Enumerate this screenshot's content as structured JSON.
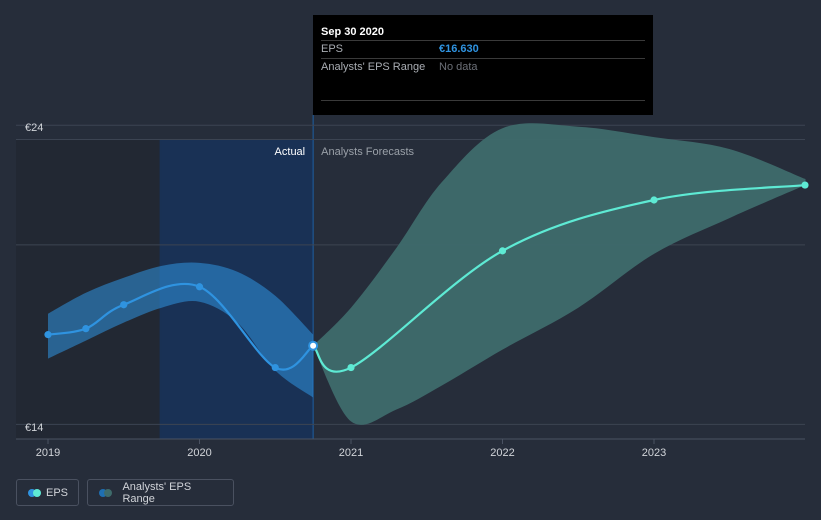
{
  "chart_data": {
    "type": "line",
    "title": "",
    "xlabel": "",
    "ylabel": "",
    "y_axis": {
      "ticks": [
        {
          "value": 24,
          "label": "€24"
        },
        {
          "value": 14,
          "label": "€14"
        }
      ],
      "gridlines": [
        14,
        20,
        24
      ]
    },
    "x_axis": {
      "ticks": [
        {
          "value": 2019,
          "label": "2019"
        },
        {
          "value": 2020,
          "label": "2020"
        },
        {
          "value": 2021,
          "label": "2021"
        },
        {
          "value": 2022,
          "label": "2022"
        },
        {
          "value": 2023,
          "label": "2023"
        }
      ]
    },
    "ylim": [
      13.0,
      25.0
    ],
    "xlim": [
      2018.8,
      2024.0
    ],
    "regions": {
      "actual_label": "Actual",
      "forecast_label": "Analysts Forecasts",
      "divider_x": 2020.75
    },
    "series": [
      {
        "name": "EPS",
        "kind": "actual",
        "color": "#2f93e0",
        "points": [
          {
            "x": 2019.0,
            "y": 17.0
          },
          {
            "x": 2019.25,
            "y": 17.2
          },
          {
            "x": 2019.5,
            "y": 18.0
          },
          {
            "x": 2020.0,
            "y": 18.6
          },
          {
            "x": 2020.5,
            "y": 15.9
          },
          {
            "x": 2020.75,
            "y": 16.63
          }
        ],
        "band": {
          "x": [
            2019.0,
            2019.25,
            2019.5,
            2019.75,
            2020.0,
            2020.25,
            2020.5,
            2020.75
          ],
          "upper": [
            17.7,
            18.4,
            18.9,
            19.3,
            19.4,
            19.1,
            18.3,
            17.0
          ],
          "lower": [
            16.2,
            16.8,
            17.4,
            17.9,
            18.1,
            17.4,
            15.8,
            14.9
          ]
        }
      },
      {
        "name": "EPS forecast",
        "kind": "forecast",
        "color": "#5eead4",
        "points": [
          {
            "x": 2020.75,
            "y": 16.63
          },
          {
            "x": 2021.0,
            "y": 15.9
          },
          {
            "x": 2022.0,
            "y": 19.8
          },
          {
            "x": 2023.0,
            "y": 21.5
          },
          {
            "x": 2024.0,
            "y": 22.0
          }
        ]
      },
      {
        "name": "Analysts' EPS Range",
        "kind": "range",
        "color": "#3e6b6b",
        "x": [
          2020.75,
          2021.0,
          2021.3,
          2021.6,
          2022.0,
          2022.5,
          2023.0,
          2023.5,
          2024.0
        ],
        "upper": [
          16.63,
          17.9,
          19.9,
          22.1,
          23.9,
          23.95,
          23.6,
          23.2,
          22.2
        ],
        "lower": [
          16.63,
          14.1,
          14.5,
          15.3,
          16.5,
          17.9,
          19.7,
          20.9,
          22.0
        ]
      }
    ]
  },
  "tooltip": {
    "date": "Sep 30 2020",
    "eps_label": "EPS",
    "eps_value": "€16.630",
    "range_label": "Analysts' EPS Range",
    "range_value": "No data"
  },
  "legend": {
    "eps_label": "EPS",
    "range_label": "Analysts' EPS Range"
  },
  "colors": {
    "background": "#262d3a",
    "actual_eps": "#2f93e0",
    "forecast_eps": "#5eead4",
    "range_band": "#3e6b6b",
    "actual_band": "#1f6fb2"
  }
}
